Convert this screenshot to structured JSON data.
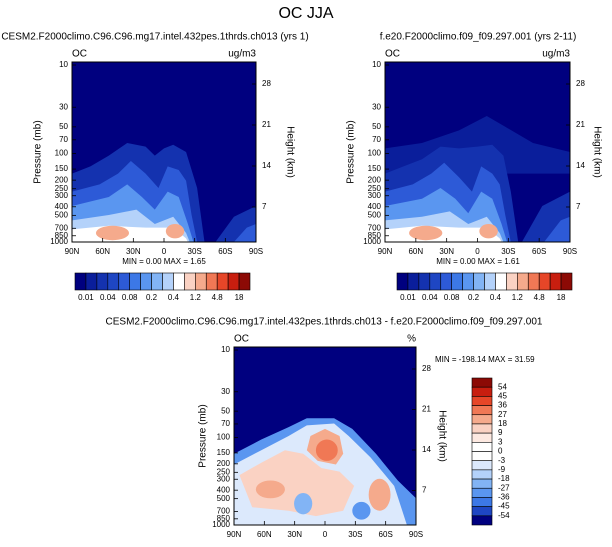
{
  "title": "OC JJA",
  "panels": [
    {
      "title": "CESM2.F2000climo.C96.C96.mg17.intel.432pes.1thrds.ch013 (yrs 1)",
      "left_label": "OC",
      "right_label": "ug/m3",
      "y_label": "Pressure (mb)",
      "y2_label": "Height (km)",
      "stats": "MIN =  0.00  MAX =  1.65"
    },
    {
      "title": "f.e20.F2000climo.f09_f09.297.001 (yrs 2-11)",
      "left_label": "OC",
      "right_label": "ug/m3",
      "y_label": "Pressure (mb)",
      "y2_label": "Height (km)",
      "stats": "MIN =  0.00  MAX =  1.61"
    },
    {
      "title": "CESM2.F2000climo.C96.C96.mg17.intel.432pes.1thrds.ch013 - f.e20.F2000climo.f09_f09.297.001",
      "left_label": "OC",
      "right_label": "%",
      "y_label": "Pressure (mb)",
      "y2_label": "Height (km)",
      "stats": "MIN = -198.14  MAX =  31.59"
    }
  ],
  "pressure_ticks": [
    10,
    30,
    50,
    70,
    100,
    150,
    200,
    250,
    300,
    400,
    500,
    700,
    850,
    1000
  ],
  "height_ticks": [
    28,
    21,
    14,
    7
  ],
  "lat_ticks": [
    "90N",
    "60N",
    "30N",
    "0",
    "30S",
    "60S",
    "90S"
  ],
  "colorbar": {
    "labels": [
      "0.01",
      "0.04",
      "0.08",
      "0.2",
      "0.4",
      "1.2",
      "4.8",
      "18"
    ],
    "colors": [
      "#00007f",
      "#0a1e9b",
      "#1432af",
      "#1e46c3",
      "#2d5ad7",
      "#3c78e6",
      "#5a96f0",
      "#82b4f5",
      "#b4d2fa",
      "#ffffff",
      "#fad2c3",
      "#f5aa8c",
      "#f07855",
      "#e64628",
      "#c81e0f",
      "#8c0a05"
    ]
  },
  "diff_colorbar": {
    "labels": [
      "54",
      "45",
      "36",
      "27",
      "18",
      "9",
      "3",
      "0",
      "-3",
      "-9",
      "-18",
      "-27",
      "-36",
      "-45",
      "-54"
    ],
    "colors": [
      "#8c0a05",
      "#c81e0f",
      "#e64628",
      "#f07855",
      "#f5aa8c",
      "#fad2c3",
      "#fde9e1",
      "#ffffff",
      "#ffffff",
      "#dce9fc",
      "#b4d2fa",
      "#82b4f5",
      "#5a96f0",
      "#3c78e6",
      "#1e46c3",
      "#00007f"
    ]
  }
}
